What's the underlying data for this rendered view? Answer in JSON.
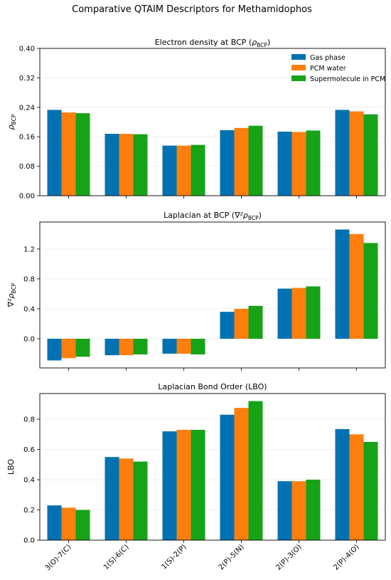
{
  "figure": {
    "title": "Comparative QTAIM Descriptors for Methamidophos"
  },
  "legend": {
    "placement": "top-right",
    "entries": [
      "Gas phase",
      "PCM water",
      "Supermolecule in PCM"
    ]
  },
  "colors": {
    "series": [
      "#0072b2",
      "#ff7f0e",
      "#17a317"
    ],
    "grid": "#ebebeb",
    "axis": "#000000"
  },
  "chart_data": [
    {
      "type": "bar",
      "title_main": "Electron density at BCP (",
      "title_sym": "ρ",
      "title_sub": "BCP",
      "title_end": ")",
      "ylabel_sym": "ρ",
      "ylabel_sub": "BCP",
      "categories": [
        "3(O)-7(C)",
        "1(S)-6(C)",
        "1(S)-2(P)",
        "2(P)-5(N)",
        "2(P)-3(O)",
        "2(P)-4(O)"
      ],
      "series": [
        {
          "name": "Gas phase",
          "values": [
            0.233,
            0.168,
            0.136,
            0.178,
            0.174,
            0.233
          ]
        },
        {
          "name": "PCM water",
          "values": [
            0.226,
            0.168,
            0.136,
            0.184,
            0.173,
            0.229
          ]
        },
        {
          "name": "Supermolecule in PCM",
          "values": [
            0.224,
            0.167,
            0.138,
            0.19,
            0.177,
            0.221
          ]
        }
      ],
      "ylim": [
        0,
        0.4
      ],
      "yticks": [
        0.0,
        0.08,
        0.16,
        0.24,
        0.32,
        0.4
      ],
      "ytick_labels": [
        "0.00",
        "0.08",
        "0.16",
        "0.24",
        "0.32",
        "0.40"
      ],
      "grid": true
    },
    {
      "type": "bar",
      "title_main": "Laplacian at BCP (",
      "title_sym": "∇²ρ",
      "title_sub": "BCP",
      "title_end": ")",
      "ylabel_sym": "∇²ρ",
      "ylabel_sub": "BCP",
      "categories": [
        "3(O)-7(C)",
        "1(S)-6(C)",
        "1(S)-2(P)",
        "2(P)-5(N)",
        "2(P)-3(O)",
        "2(P)-4(O)"
      ],
      "series": [
        {
          "name": "Gas phase",
          "values": [
            -0.29,
            -0.22,
            -0.2,
            0.36,
            0.67,
            1.46
          ]
        },
        {
          "name": "PCM water",
          "values": [
            -0.26,
            -0.22,
            -0.2,
            0.4,
            0.68,
            1.4
          ]
        },
        {
          "name": "Supermolecule in PCM",
          "values": [
            -0.24,
            -0.21,
            -0.21,
            0.44,
            0.7,
            1.28
          ]
        }
      ],
      "ylim": [
        -0.39,
        1.56
      ],
      "yticks": [
        0.0,
        0.4,
        0.8,
        1.2
      ],
      "ytick_labels": [
        "0.0",
        "0.4",
        "0.8",
        "1.2"
      ],
      "grid": true
    },
    {
      "type": "bar",
      "title_main": "Laplacian Bond Order (LBO)",
      "title_sym": "",
      "title_sub": "",
      "title_end": "",
      "ylabel": "LBO",
      "categories": [
        "3(O)-7(C)",
        "1(S)-6(C)",
        "1(S)-2(P)",
        "2(P)-5(N)",
        "2(P)-3(O)",
        "2(P)-4(O)"
      ],
      "series": [
        {
          "name": "Gas phase",
          "values": [
            0.23,
            0.55,
            0.72,
            0.83,
            0.39,
            0.735
          ]
        },
        {
          "name": "PCM water",
          "values": [
            0.215,
            0.54,
            0.73,
            0.875,
            0.39,
            0.7
          ]
        },
        {
          "name": "Supermolecule in PCM",
          "values": [
            0.2,
            0.52,
            0.73,
            0.92,
            0.4,
            0.65
          ]
        }
      ],
      "ylim": [
        0,
        0.97
      ],
      "yticks": [
        0.0,
        0.2,
        0.4,
        0.6,
        0.8
      ],
      "ytick_labels": [
        "0.0",
        "0.2",
        "0.4",
        "0.6",
        "0.8"
      ],
      "grid": true
    }
  ]
}
